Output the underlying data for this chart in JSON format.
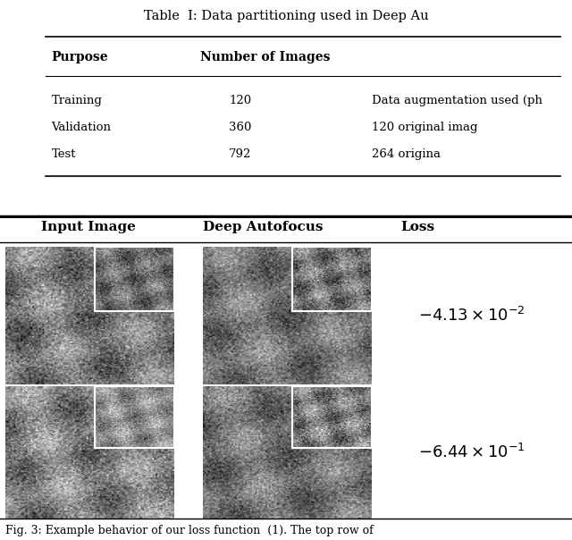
{
  "bg_color": "#ffffff",
  "table_title": "Table  I: Data partitioning used in Deep Au",
  "table_headers": [
    "Purpose",
    "Number of Images"
  ],
  "table_rows": [
    [
      "Training",
      "120",
      "Data augmentation used (ph"
    ],
    [
      "Validation",
      "360",
      "120 original imag"
    ],
    [
      "Test",
      "792",
      "264 origina"
    ]
  ],
  "col_headers": [
    "Input Image",
    "Deep Autofocus",
    "Loss"
  ],
  "loss_values": [
    "-4.13 \\times 10^{-2}",
    "-6.44 \\times 10^{-1}"
  ],
  "caption": "Fig. 3: Example behavior of our loss function  (1). The top row of",
  "header_fontsize": 11,
  "table_fontsize": 10,
  "caption_fontsize": 9.5
}
